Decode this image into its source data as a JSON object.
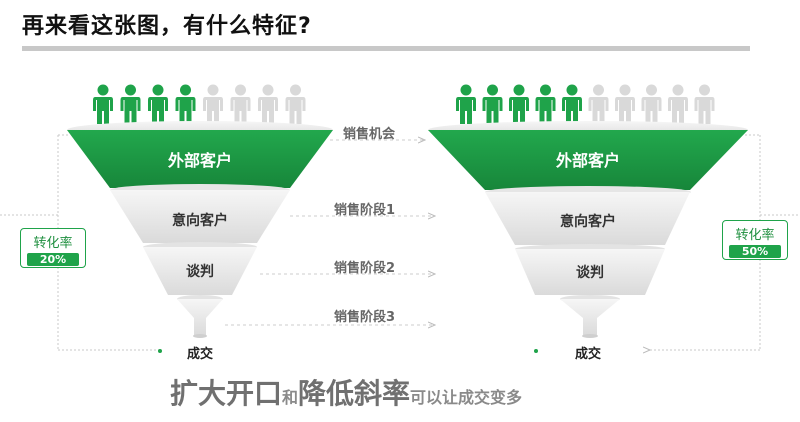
{
  "title": "再来看这张图，有什么特征?",
  "stages": [
    "销售机会",
    "销售阶段1",
    "销售阶段2",
    "销售阶段3"
  ],
  "funnels": [
    {
      "levels": [
        "外部客户",
        "意向客户",
        "谈判",
        "成交"
      ],
      "green_people": 4,
      "gray_people": 4,
      "rate_label": "转化率",
      "rate_value": "20%"
    },
    {
      "levels": [
        "外部客户",
        "意向客户",
        "谈判",
        "成交"
      ],
      "green_people": 5,
      "gray_people": 5,
      "rate_label": "转化率",
      "rate_value": "50%"
    }
  ],
  "bottom": {
    "part1": "扩大开口",
    "connector": "和",
    "part2": "降低斜率",
    "part3": "可以让成交变多"
  },
  "colors": {
    "green": "#1fa34a",
    "gray_person": "#d9d9d9",
    "funnel_gray": "#ececec"
  }
}
